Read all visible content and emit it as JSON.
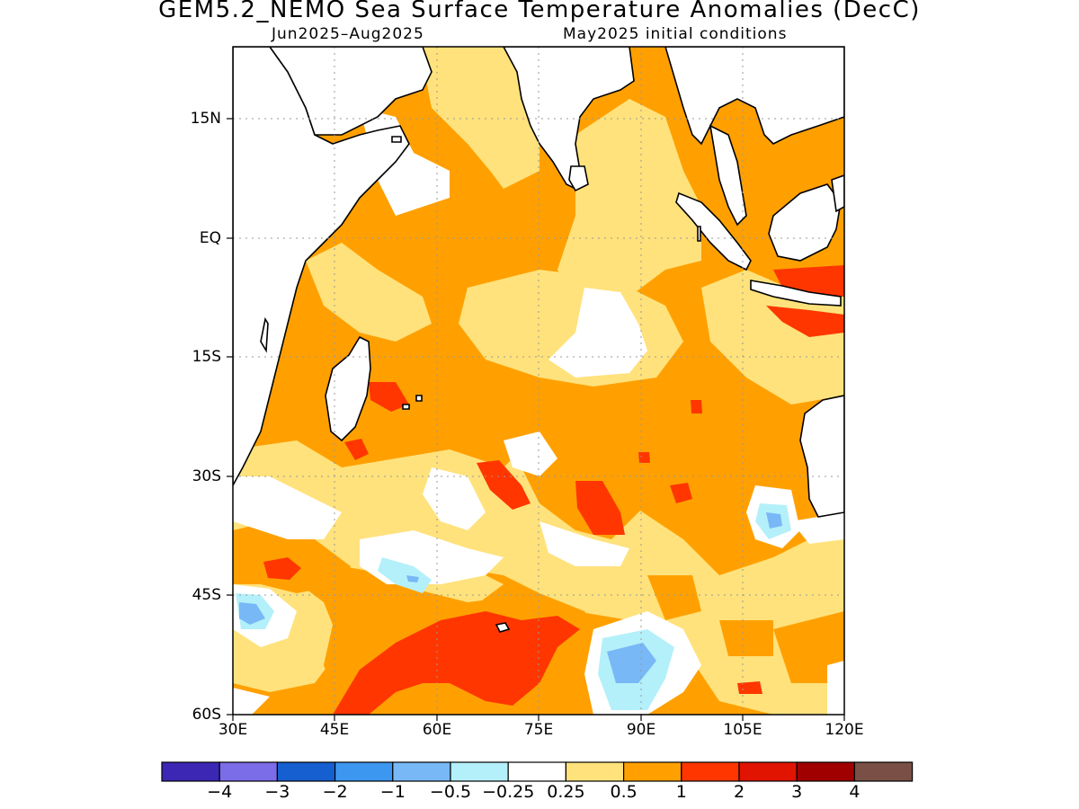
{
  "header": {
    "title": "GEM5.2_NEMO Sea Surface Temperature Anomalies (DecC)",
    "period": "Jun2025–Aug2025",
    "init": "May2025 initial conditions"
  },
  "axes": {
    "x_ticks": [
      "30E",
      "45E",
      "60E",
      "75E",
      "90E",
      "105E",
      "120E"
    ],
    "y_ticks": [
      "15N",
      "EQ",
      "15S",
      "30S",
      "45S",
      "60S"
    ],
    "lon_range": [
      30,
      120
    ],
    "lat_range": [
      -60,
      24
    ]
  },
  "colorbar": {
    "colors": [
      "#3c27b5",
      "#7b6ce8",
      "#165fd0",
      "#3c97f0",
      "#78b8f6",
      "#b4f0fa",
      "#ffffff",
      "#ffe27c",
      "#ffa000",
      "#ff3600",
      "#e01400",
      "#a00000",
      "#7a5046"
    ],
    "labels": [
      "−4",
      "−3",
      "−2",
      "−1",
      "−0.5",
      "−0.25",
      "0.25",
      "0.5",
      "1",
      "2",
      "3",
      "4"
    ]
  },
  "map": {
    "land_color": "#ffffff",
    "coast_color": "#000000",
    "background_anomaly_color": "#ffa000"
  }
}
